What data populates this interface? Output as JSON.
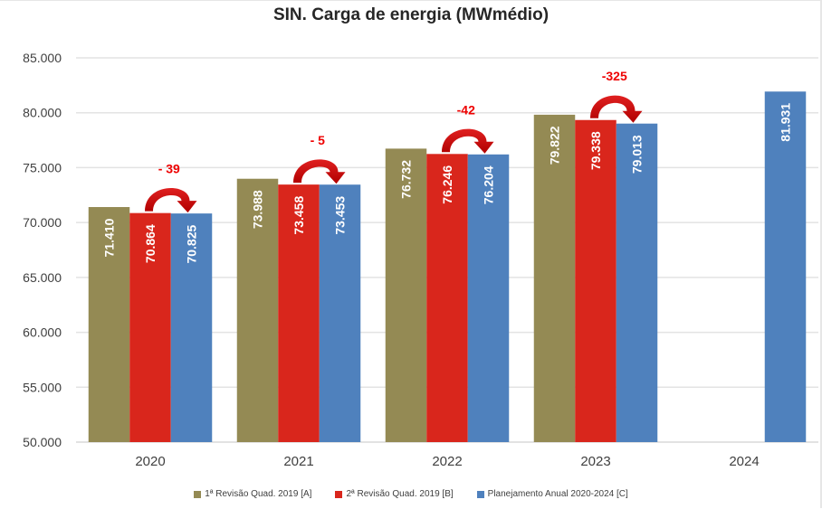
{
  "chart_data": {
    "type": "bar",
    "title": "SIN. Carga de energia (MWmédio)",
    "xlabel": "",
    "ylabel": "",
    "ylim": [
      50000,
      85000
    ],
    "yticks": [
      50000,
      55000,
      60000,
      65000,
      70000,
      75000,
      80000,
      85000
    ],
    "ytick_labels": [
      "50.000",
      "55.000",
      "60.000",
      "65.000",
      "70.000",
      "75.000",
      "80.000",
      "85.000"
    ],
    "grid": true,
    "legend_position": "bottom",
    "categories": [
      "2020",
      "2021",
      "2022",
      "2023",
      "2024"
    ],
    "series": [
      {
        "name": "1ª Revisão Quad. 2019 [A]",
        "color": "#948a54",
        "values": [
          71410,
          73988,
          76732,
          79822,
          null
        ],
        "labels": [
          "71.410",
          "73.988",
          "76.732",
          "79.822",
          null
        ]
      },
      {
        "name": "2ª Revisão Quad. 2019 [B]",
        "color": "#d9261c",
        "values": [
          70864,
          73458,
          76246,
          79338,
          null
        ],
        "labels": [
          "70.864",
          "73.458",
          "76.246",
          "79.338",
          null
        ]
      },
      {
        "name": "Planejamento Anual 2020-2024 [C]",
        "color": "#4f81bd",
        "values": [
          70825,
          73453,
          76204,
          79013,
          81931
        ],
        "labels": [
          "70.825",
          "73.453",
          "76.204",
          "79.013",
          "81.931"
        ]
      }
    ],
    "annotations": [
      {
        "category": "2020",
        "text": "- 39",
        "from_series": 1,
        "to_series": 2
      },
      {
        "category": "2021",
        "text": "- 5",
        "from_series": 1,
        "to_series": 2
      },
      {
        "category": "2022",
        "text": "-42",
        "from_series": 1,
        "to_series": 2
      },
      {
        "category": "2023",
        "text": "-325",
        "from_series": 1,
        "to_series": 2
      }
    ],
    "annotation_color": "#ee0000",
    "arrow_color": "#c00000"
  }
}
